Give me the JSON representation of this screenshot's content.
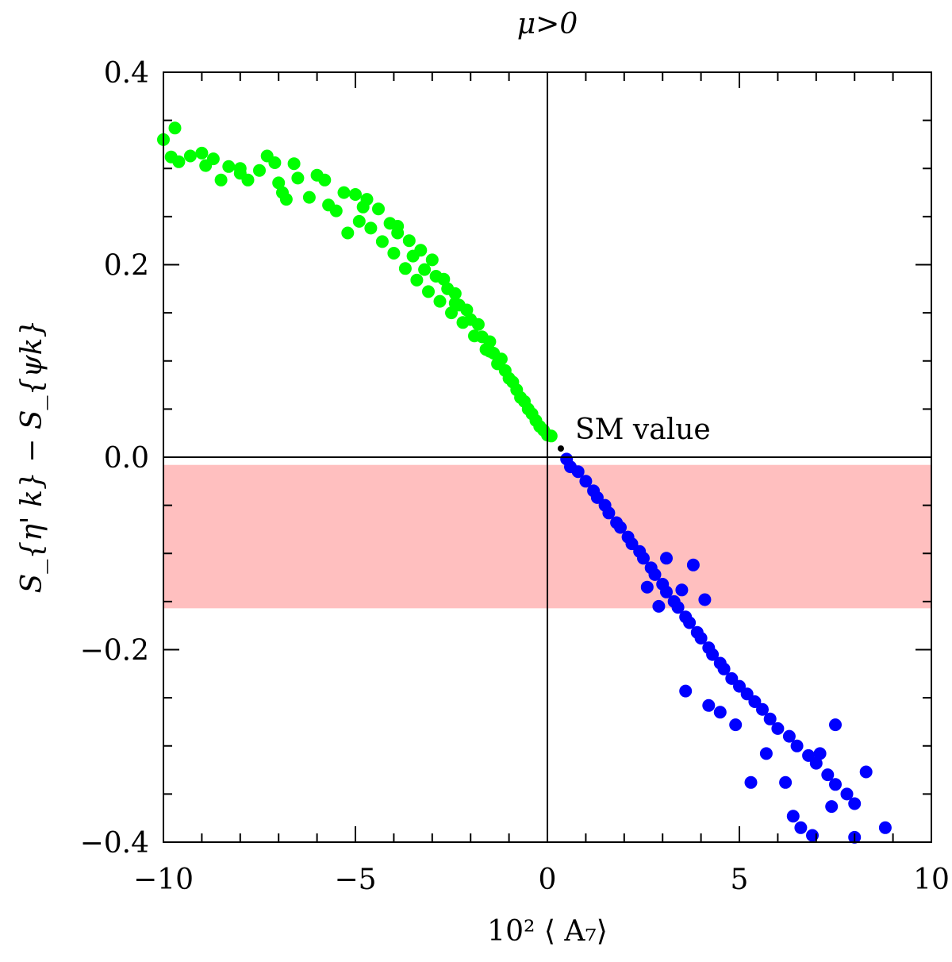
{
  "chart_data": {
    "type": "scatter",
    "title": "μ>0",
    "xlabel": "10² ⟨ A₇⟩",
    "ylabel": "S_{η' k} − S_{ψk}",
    "xlim": [
      -10,
      10
    ],
    "ylim": [
      -0.4,
      0.4
    ],
    "x_ticks": [
      -10,
      -5,
      0,
      5,
      10
    ],
    "x_tick_labels": [
      "−10",
      "−5",
      "0",
      "5",
      "10"
    ],
    "y_ticks": [
      -0.4,
      -0.2,
      0.0,
      0.2,
      0.4
    ],
    "y_tick_labels": [
      "−0.4",
      "−0.2",
      "0.0",
      "0.2",
      "0.4"
    ],
    "grid": false,
    "band": {
      "ymin": -0.157,
      "ymax": -0.008,
      "color": "#ffbfbf"
    },
    "reference_lines": {
      "x": 0,
      "y": 0
    },
    "annotation": {
      "text": "SM value",
      "x": 0.35,
      "y": 0.009
    },
    "series": [
      {
        "color": "#00ff00",
        "values": [
          [
            -10.0,
            0.33
          ],
          [
            -9.7,
            0.342
          ],
          [
            -9.8,
            0.312
          ],
          [
            -9.6,
            0.307
          ],
          [
            -9.3,
            0.313
          ],
          [
            -9.0,
            0.316
          ],
          [
            -8.9,
            0.303
          ],
          [
            -8.7,
            0.31
          ],
          [
            -8.5,
            0.288
          ],
          [
            -8.3,
            0.302
          ],
          [
            -8.0,
            0.295
          ],
          [
            -7.8,
            0.288
          ],
          [
            -7.5,
            0.298
          ],
          [
            -7.3,
            0.313
          ],
          [
            -7.1,
            0.306
          ],
          [
            -7.0,
            0.285
          ],
          [
            -6.8,
            0.268
          ],
          [
            -6.6,
            0.305
          ],
          [
            -6.5,
            0.29
          ],
          [
            -6.2,
            0.27
          ],
          [
            -6.0,
            0.293
          ],
          [
            -5.8,
            0.288
          ],
          [
            -5.7,
            0.262
          ],
          [
            -5.5,
            0.256
          ],
          [
            -5.3,
            0.275
          ],
          [
            -5.2,
            0.233
          ],
          [
            -5.0,
            0.273
          ],
          [
            -4.9,
            0.245
          ],
          [
            -4.7,
            0.268
          ],
          [
            -4.6,
            0.238
          ],
          [
            -4.4,
            0.258
          ],
          [
            -4.3,
            0.224
          ],
          [
            -4.1,
            0.243
          ],
          [
            -4.0,
            0.212
          ],
          [
            -3.9,
            0.233
          ],
          [
            -3.7,
            0.196
          ],
          [
            -3.6,
            0.225
          ],
          [
            -3.5,
            0.209
          ],
          [
            -3.4,
            0.184
          ],
          [
            -3.3,
            0.215
          ],
          [
            -3.2,
            0.195
          ],
          [
            -3.1,
            0.172
          ],
          [
            -3.0,
            0.205
          ],
          [
            -2.9,
            0.188
          ],
          [
            -2.8,
            0.162
          ],
          [
            -2.7,
            0.185
          ],
          [
            -2.6,
            0.175
          ],
          [
            -2.5,
            0.15
          ],
          [
            -2.4,
            0.17
          ],
          [
            -2.3,
            0.158
          ],
          [
            -2.2,
            0.14
          ],
          [
            -2.1,
            0.153
          ],
          [
            -2.0,
            0.143
          ],
          [
            -1.9,
            0.126
          ],
          [
            -1.8,
            0.138
          ],
          [
            -1.7,
            0.125
          ],
          [
            -1.6,
            0.112
          ],
          [
            -1.5,
            0.12
          ],
          [
            -1.4,
            0.108
          ],
          [
            -1.3,
            0.097
          ],
          [
            -1.2,
            0.102
          ],
          [
            -1.1,
            0.09
          ],
          [
            -1.0,
            0.082
          ],
          [
            -0.9,
            0.078
          ],
          [
            -0.8,
            0.07
          ],
          [
            -0.7,
            0.062
          ],
          [
            -0.6,
            0.058
          ],
          [
            -0.5,
            0.05
          ],
          [
            -0.4,
            0.045
          ],
          [
            -0.3,
            0.038
          ],
          [
            -0.2,
            0.032
          ],
          [
            -0.1,
            0.028
          ],
          [
            0.0,
            0.023
          ],
          [
            0.1,
            0.022
          ],
          [
            -8.0,
            0.3
          ],
          [
            -6.9,
            0.275
          ],
          [
            -4.8,
            0.26
          ],
          [
            -3.9,
            0.24
          ],
          [
            -2.4,
            0.16
          ],
          [
            -1.5,
            0.11
          ]
        ]
      },
      {
        "color": "#0000ff",
        "values": [
          [
            0.5,
            -0.002
          ],
          [
            0.6,
            -0.01
          ],
          [
            0.8,
            -0.015
          ],
          [
            1.0,
            -0.025
          ],
          [
            1.2,
            -0.035
          ],
          [
            1.3,
            -0.042
          ],
          [
            1.5,
            -0.05
          ],
          [
            1.6,
            -0.058
          ],
          [
            1.8,
            -0.068
          ],
          [
            1.9,
            -0.073
          ],
          [
            2.1,
            -0.083
          ],
          [
            2.2,
            -0.09
          ],
          [
            2.4,
            -0.098
          ],
          [
            2.5,
            -0.105
          ],
          [
            2.7,
            -0.115
          ],
          [
            2.8,
            -0.122
          ],
          [
            3.0,
            -0.132
          ],
          [
            3.1,
            -0.14
          ],
          [
            3.3,
            -0.15
          ],
          [
            3.4,
            -0.156
          ],
          [
            3.6,
            -0.166
          ],
          [
            3.7,
            -0.172
          ],
          [
            3.9,
            -0.182
          ],
          [
            4.0,
            -0.188
          ],
          [
            4.2,
            -0.198
          ],
          [
            4.3,
            -0.205
          ],
          [
            4.5,
            -0.214
          ],
          [
            4.6,
            -0.22
          ],
          [
            4.8,
            -0.23
          ],
          [
            5.0,
            -0.238
          ],
          [
            5.2,
            -0.246
          ],
          [
            5.4,
            -0.254
          ],
          [
            5.6,
            -0.262
          ],
          [
            5.8,
            -0.272
          ],
          [
            6.0,
            -0.282
          ],
          [
            6.3,
            -0.29
          ],
          [
            6.5,
            -0.3
          ],
          [
            6.8,
            -0.31
          ],
          [
            7.0,
            -0.318
          ],
          [
            7.3,
            -0.33
          ],
          [
            7.5,
            -0.34
          ],
          [
            7.8,
            -0.35
          ],
          [
            8.0,
            -0.36
          ],
          [
            8.3,
            -0.327
          ],
          [
            8.8,
            -0.385
          ],
          [
            7.1,
            -0.308
          ],
          [
            7.5,
            -0.278
          ],
          [
            8.0,
            -0.395
          ],
          [
            6.6,
            -0.385
          ],
          [
            6.9,
            -0.393
          ],
          [
            7.4,
            -0.363
          ],
          [
            6.4,
            -0.373
          ],
          [
            5.7,
            -0.308
          ],
          [
            5.3,
            -0.338
          ],
          [
            6.2,
            -0.338
          ],
          [
            4.9,
            -0.278
          ],
          [
            4.5,
            -0.265
          ],
          [
            4.2,
            -0.258
          ],
          [
            3.6,
            -0.243
          ],
          [
            2.6,
            -0.135
          ],
          [
            3.1,
            -0.105
          ],
          [
            2.9,
            -0.155
          ],
          [
            4.1,
            -0.148
          ],
          [
            3.8,
            -0.112
          ],
          [
            3.5,
            -0.138
          ]
        ]
      }
    ]
  }
}
